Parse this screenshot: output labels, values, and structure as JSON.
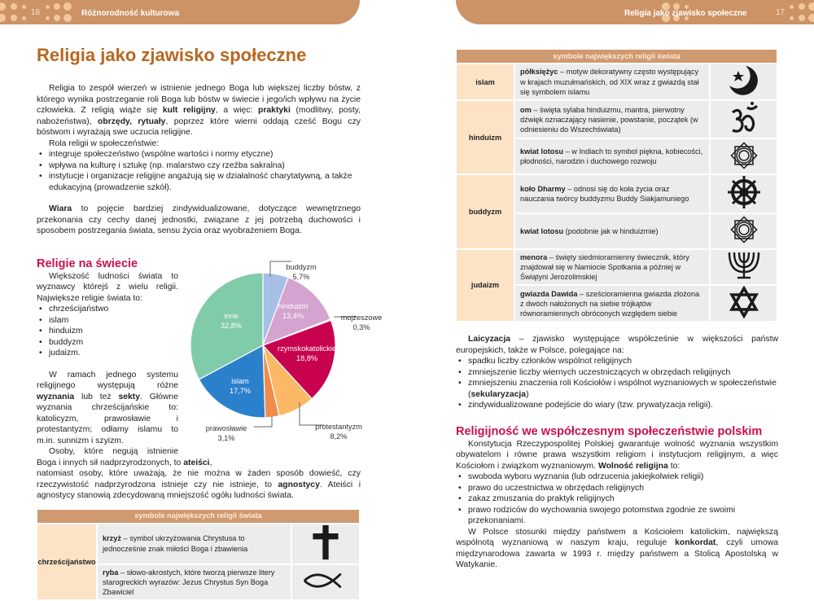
{
  "left_page": {
    "page_number": "16",
    "header_title": "Różnorodność kulturowa",
    "title": "Religia jako zjawisko społeczne",
    "intro": [
      [
        {
          "t": "Religia to zespół wierzeń w istnienie jednego Boga lub większej liczby bóstw, z którego wynika postrzeganie roli Boga lub bóstw w świecie i jego/ich wpływu na życie człowieka. Z religią wiąże się "
        },
        {
          "t": "kult religijny",
          "b": 1
        },
        {
          "t": ", a więc: "
        },
        {
          "t": "praktyki",
          "b": 1
        },
        {
          "t": " (modlitwy, posty, nabożeństwa), "
        },
        {
          "t": "obrzędy, rytuały",
          "b": 1
        },
        {
          "t": ", poprzez które wierni oddają cześć Bogu czy bóstwom i wyrażają swe uczucia religijne."
        }
      ]
    ],
    "role_intro": "Rola religii w społeczeństwie:",
    "roles": [
      "integruje społeczeństwo (wspólne wartości i normy etyczne)",
      "wpływa na kulturę i sztukę (np. malarstwo czy rzeźba sakralna)",
      "instytucje i organizacje religijne angażują się w działalność charytatywną, a także edukacyjną (prowadzenie szkół)."
    ],
    "faith": [
      {
        "t": "Wiara",
        "b": 1
      },
      {
        "t": " to pojęcie bardziej zindywidualizowane, dotyczące wewnętrznego przekonania czy cechy danej jednostki, związane z jej potrzebą duchowości i sposobem postrzegania świata, sensu życia oraz wyobrażeniem Boga."
      }
    ],
    "section_title": "Religie na świecie",
    "world_intro": "Większość ludności świata to wyznawcy którejś z wielu religii. Największe religie świata to:",
    "world_list": [
      "chrześcijaństwo",
      "islam",
      "hinduizm",
      "buddyzm",
      "judaizm."
    ],
    "denominations": [
      {
        "t": "W ramach jednego systemu religijnego występują różne "
      },
      {
        "t": "wyznania",
        "b": 1
      },
      {
        "t": " lub też "
      },
      {
        "t": "sekty",
        "b": 1
      },
      {
        "t": ". Główne wyznania chrześcijańskie to: katolicyzm, prawosławie i protestantyzm; odłamy islamu to m.in. sunnizm i szyizm."
      }
    ],
    "atheists": [
      {
        "t": "Osoby, które negują istnienie Boga i innych sił nadprzyrodzonych, to "
      },
      {
        "t": "ateiści",
        "b": 1
      },
      {
        "t": ","
      }
    ],
    "atheists_cont": [
      {
        "t": "natomiast osoby, które uważają, że nie można w żaden sposób dowieść, czy rzeczywistość nadprzyrodzona istnieje czy nie istnieje, to "
      },
      {
        "t": "agnostycy",
        "b": 1
      },
      {
        "t": ". Ateiści i agnostycy stanowią zdecydowaną mniejszość ogółu ludności świata."
      }
    ],
    "table": {
      "header": "symbole największych religii świata",
      "religion": "chrześcijaństwo",
      "rows": [
        {
          "term": "krzyż",
          "desc": " – symbol ukrzyżowania Chrystusa to jednocześnie znak miłości Boga i zbawienia",
          "icon": "cross-icon"
        },
        {
          "term": "ryba",
          "desc": " – słowo-akrostych, które tworzą pierwsze litery starogreckich wyrazów: Jezus Chrystus Syn Boga Zbawiciel",
          "icon": "ichthys-fish-icon"
        }
      ]
    }
  },
  "chart_data": {
    "type": "pie",
    "start": "top",
    "direction": "clockwise",
    "slices": [
      {
        "label": "buddyzm",
        "value": 5.7,
        "text": "5,7%",
        "color": "#a7bfe6"
      },
      {
        "label": "hinduizm",
        "value": 13.4,
        "text": "13,4%",
        "color": "#d5a3cf"
      },
      {
        "label": "mojżeszowe",
        "value": 0.3,
        "text": "0,3%",
        "color": "#44b4e0"
      },
      {
        "label": "rzymskokatolickie",
        "value": 18.8,
        "text": "18,8%",
        "color": "#c8024f"
      },
      {
        "label": "protestantyzm",
        "value": 8.2,
        "text": "8,2%",
        "color": "#fbb965"
      },
      {
        "label": "prawosławie",
        "value": 3.1,
        "text": "3,1%",
        "color": "#f08b4c"
      },
      {
        "label": "islam",
        "value": 17.7,
        "text": "17,7%",
        "color": "#2b80cc"
      },
      {
        "label": "inne",
        "value": 32.8,
        "text": "32,8%",
        "color": "#80cbaa"
      }
    ]
  },
  "right_page": {
    "page_number": "17",
    "header_title": "Religia jako zjawisko społeczne",
    "table": {
      "header": "symbole największych religii świata",
      "groups": [
        {
          "religion": "islam",
          "rows": [
            {
              "term": "półksiężyc",
              "desc": " – motyw dekoratywny często występujący w krajach muzułmańskich, od XIX wraz z gwiazdą stał się symbolem islamu",
              "icon": "crescent-star-icon"
            }
          ]
        },
        {
          "religion": "hinduizm",
          "rows": [
            {
              "term": "om",
              "desc": " – święta sylaba hinduizmu, mantra, pierwotny dźwięk oznaczający nasienie, powstanie, początek (w odniesieniu do Wszechświata)",
              "icon": "om-icon"
            },
            {
              "term": "kwiat lotosu",
              "desc": " – w Indiach to symbol piękna, kobiecości, płodności, narodzin i duchowego rozwoju",
              "icon": "lotus-icon"
            }
          ]
        },
        {
          "religion": "buddyzm",
          "rows": [
            {
              "term": "koło Dharmy",
              "desc": " – odnosi się do koła życia oraz nauczania twórcy buddyzmu Buddy Siakjamuniego",
              "icon": "dharma-wheel-icon"
            },
            {
              "term": "kwiat lotosu",
              "desc": " (podobnie jak w hinduizmie)",
              "icon": "lotus-icon"
            }
          ]
        },
        {
          "religion": "judaizm",
          "rows": [
            {
              "term": "menora",
              "desc": " – święty siedmioramienny świecznik, który znajdował się w Namiocie Spotkania a później w Świątyni Jerozolimskiej",
              "icon": "menorah-icon"
            },
            {
              "term": "gwiazda Dawida",
              "desc": " – sześcioramienna gwiazda złożona z dwóch nałożonych na siebie trójkątów równoramiennych obróconych względem siebie",
              "icon": "star-of-david-icon"
            }
          ]
        }
      ]
    },
    "secular": [
      {
        "t": "Laicyzacja",
        "b": 1
      },
      {
        "t": " – zjawisko występujące współcześnie w większości państw europejskich, także w Polsce, polegające na:"
      }
    ],
    "secular_list": [
      [
        {
          "t": "spadku liczby członków wspólnot religijnych"
        }
      ],
      [
        {
          "t": "zmniejszenie liczby wiernych uczestniczących w obrzędach religijnych"
        }
      ],
      [
        {
          "t": "zmniejszeniu znaczenia roli Kościołów i wspólnot wyznaniowych w społeczeństwie ("
        },
        {
          "t": "sekularyzacja",
          "b": 1
        },
        {
          "t": ")"
        }
      ],
      [
        {
          "t": "zindywidualizowane podejście do wiary (tzw. prywatyzacja religii)."
        }
      ]
    ],
    "section_title": "Religijność we współczesnym społeczeństwie polskim",
    "constitution": [
      {
        "t": "Konstytucja Rzeczypospolitej Polskiej gwarantuje wolność wyznania wszystkim obywatelom i równe prawa wszystkim religiom i instytucjom religijnym, a więc Kościołom i związkom wyznaniowym. "
      },
      {
        "t": "Wolność religijna",
        "b": 1
      },
      {
        "t": " to:"
      }
    ],
    "freedom_list": [
      "swoboda wyboru wyznania (lub odrzucenia jakiejkolwiek religii)",
      "prawo do uczestnictwa w obrzędach religijnych",
      "zakaz zmuszania do praktyk religijnych",
      "prawo rodziców do wychowania swojego potomstwa zgodnie ze swoimi przekonaniami."
    ],
    "concordat": [
      {
        "t": "W Polsce stosunki między państwem a Kościołem katolickim, największą wspólnotą wyznaniową w naszym kraju, reguluje "
      },
      {
        "t": "konkordat",
        "b": 1
      },
      {
        "t": ", czyli umowa międzynarodowa zawarta w 1993 r. między państwem a Stolicą Apostolską w Watykanie."
      }
    ]
  }
}
